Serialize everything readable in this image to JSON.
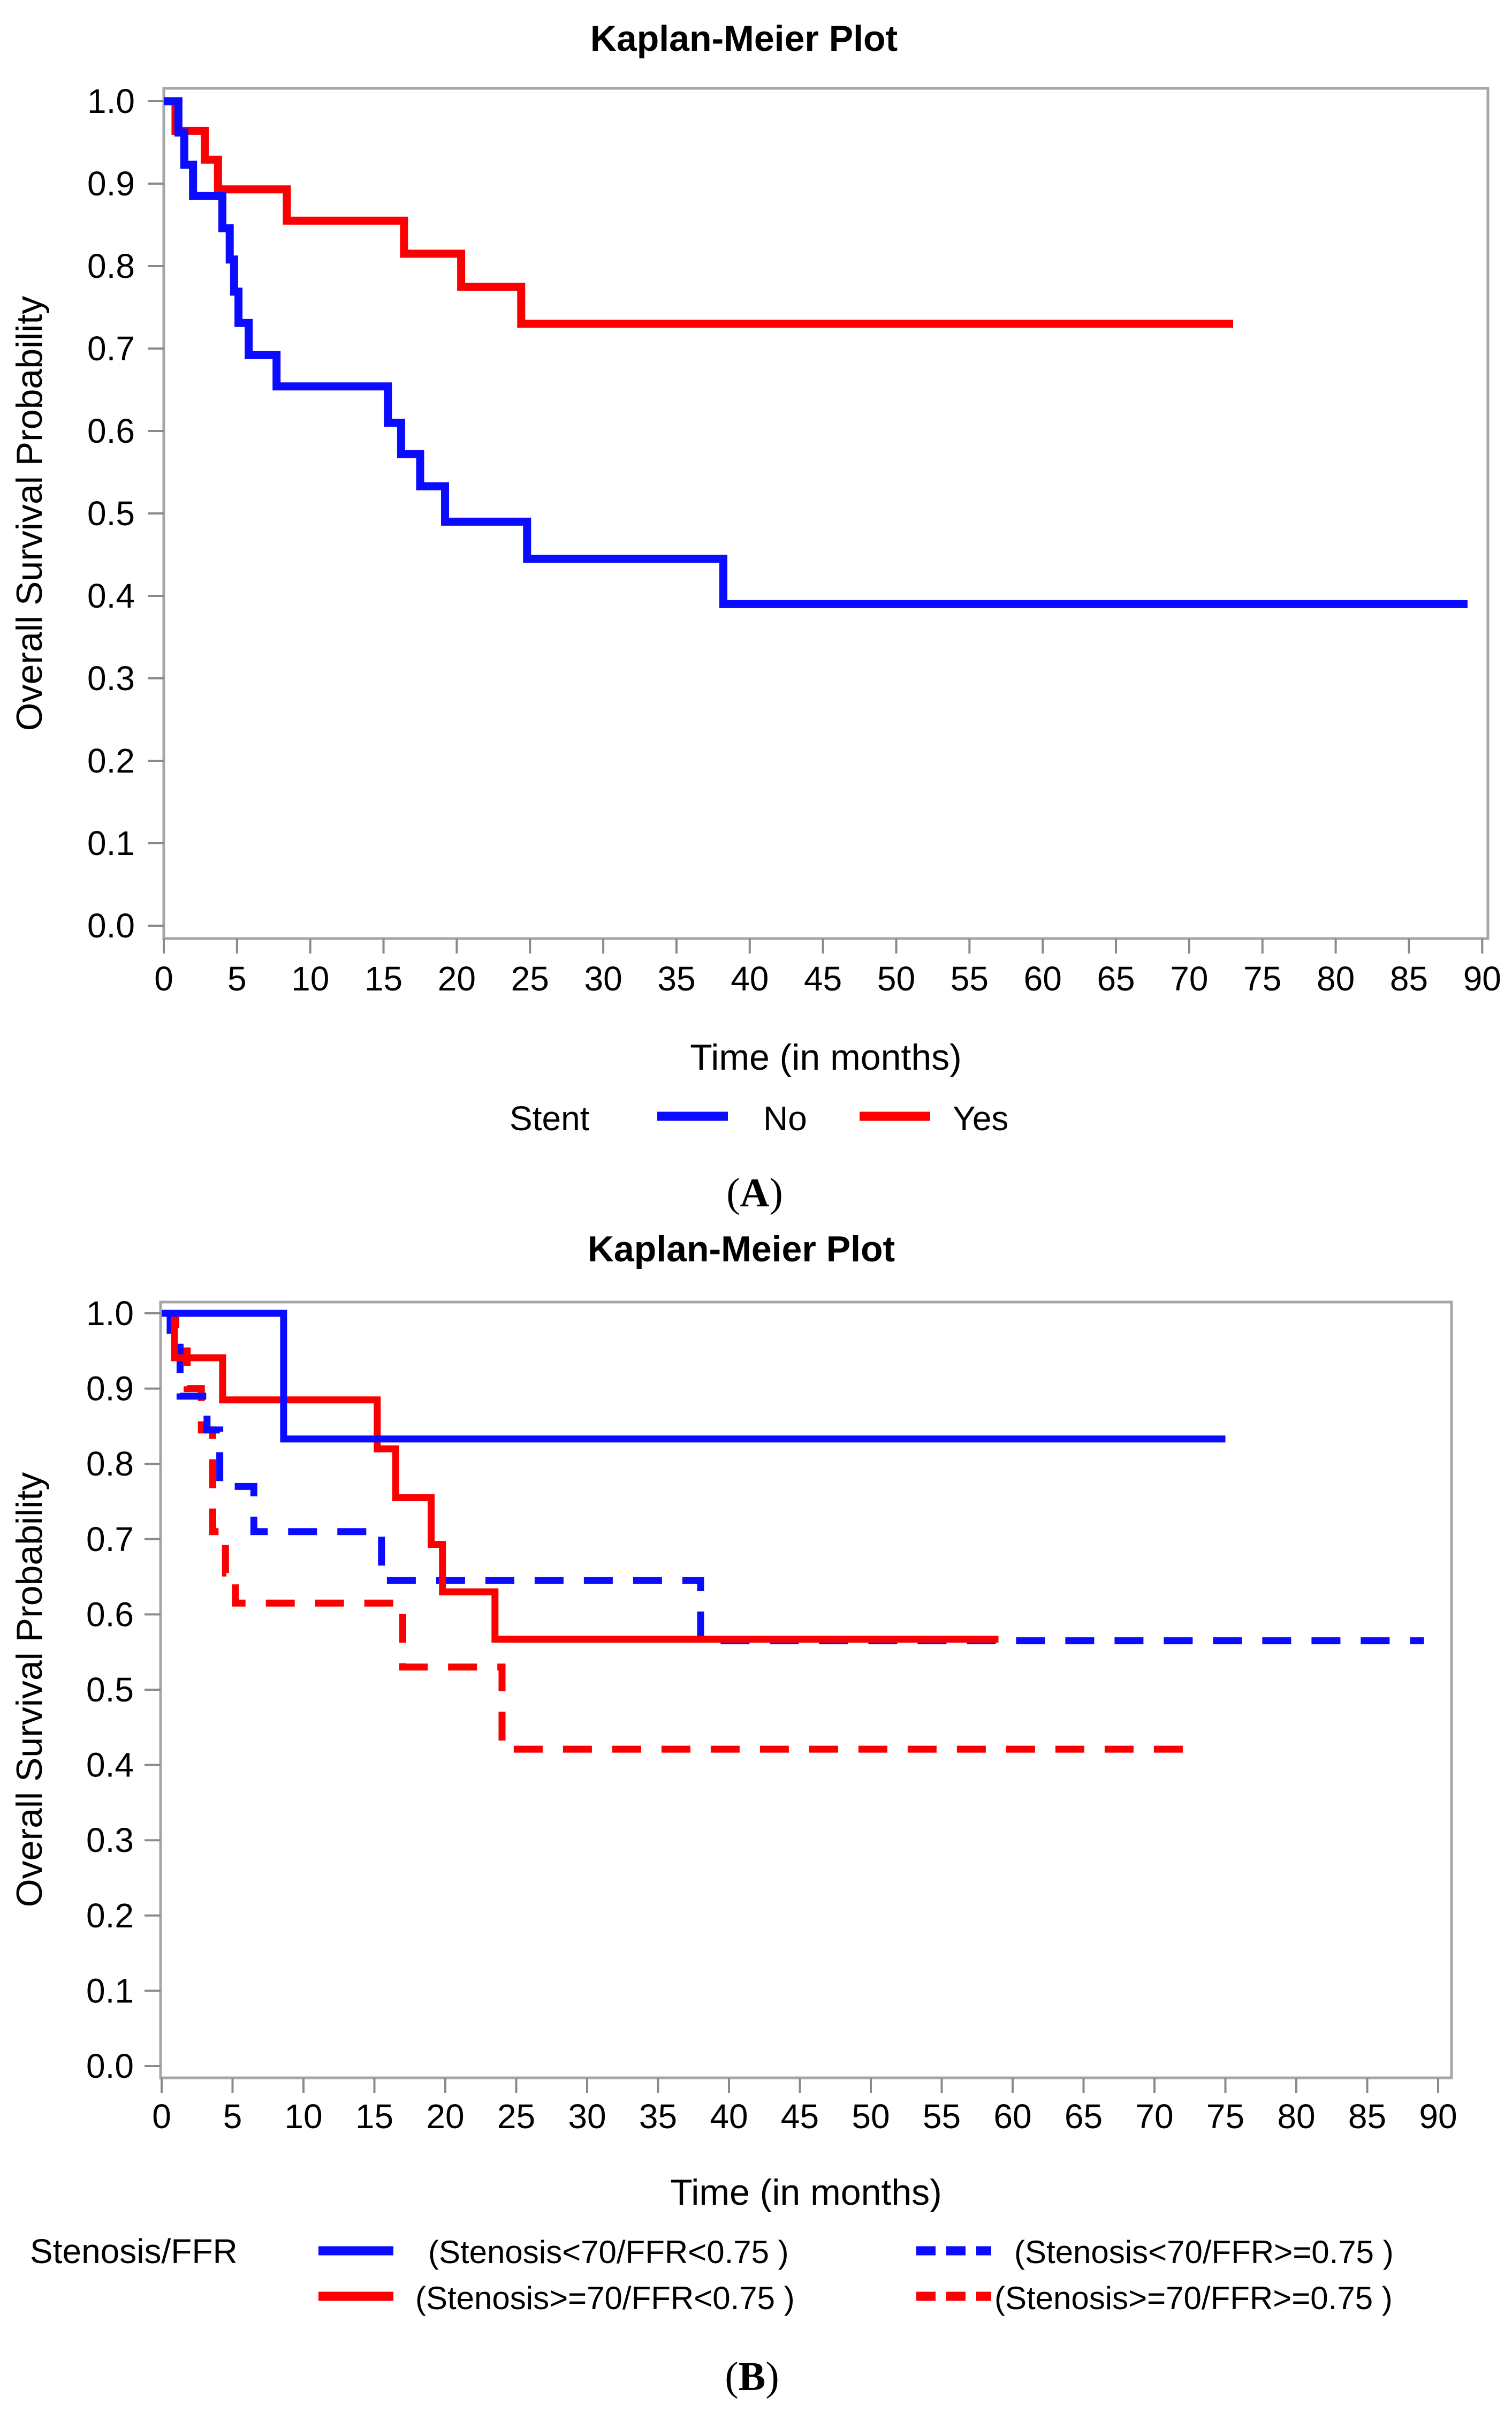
{
  "figure": {
    "background": "#ffffff",
    "panel_count": 2
  },
  "colors": {
    "blue": "#0b0bff",
    "red": "#fb0000",
    "frame_gray": "#a6a6a6",
    "text_black": "#000000"
  },
  "chart_data": [
    {
      "type": "line",
      "subtype": "kaplan-meier-step",
      "panel": "A",
      "title": "Kaplan-Meier Plot",
      "xlabel": "Time (in months)",
      "ylabel": "Overall Survival Probability",
      "caption": {
        "open": "(",
        "letter": "A",
        "close": ")"
      },
      "xlim": [
        0,
        90
      ],
      "ylim": [
        0.0,
        1.0
      ],
      "x_ticks": [
        0,
        5,
        10,
        15,
        20,
        25,
        30,
        35,
        40,
        45,
        50,
        55,
        60,
        65,
        70,
        75,
        80,
        85,
        90
      ],
      "y_ticks": [
        0.0,
        0.1,
        0.2,
        0.3,
        0.4,
        0.5,
        0.6,
        0.7,
        0.8,
        0.9,
        1.0
      ],
      "grid": false,
      "legend": {
        "title": "Stent",
        "position": "bottom",
        "entries": [
          {
            "label": "No",
            "color": "#0b0bff",
            "dash": "solid"
          },
          {
            "label": "Yes",
            "color": "#fb0000",
            "dash": "solid"
          }
        ]
      },
      "series": [
        {
          "name": "No",
          "color": "#0b0bff",
          "dash": "solid",
          "points_month_prob": [
            [
              0,
              1.0
            ],
            [
              1.0,
              0.962
            ],
            [
              1.4,
              0.923
            ],
            [
              2.0,
              0.885
            ],
            [
              4.0,
              0.846
            ],
            [
              4.5,
              0.808
            ],
            [
              4.8,
              0.769
            ],
            [
              5.1,
              0.731
            ],
            [
              5.8,
              0.692
            ],
            [
              7.7,
              0.654
            ],
            [
              15.3,
              0.61
            ],
            [
              16.2,
              0.572
            ],
            [
              17.5,
              0.533
            ],
            [
              19.2,
              0.49
            ],
            [
              24.8,
              0.445
            ],
            [
              38.2,
              0.39
            ],
            [
              89,
              0.39
            ]
          ]
        },
        {
          "name": "Yes",
          "color": "#fb0000",
          "dash": "solid",
          "points_month_prob": [
            [
              0,
              1.0
            ],
            [
              0.8,
              0.964
            ],
            [
              2.8,
              0.929
            ],
            [
              3.7,
              0.893
            ],
            [
              8.4,
              0.855
            ],
            [
              16.4,
              0.815
            ],
            [
              20.3,
              0.775
            ],
            [
              24.4,
              0.73
            ],
            [
              73,
              0.73
            ]
          ]
        }
      ]
    },
    {
      "type": "line",
      "subtype": "kaplan-meier-step",
      "panel": "B",
      "title": "Kaplan-Meier Plot",
      "xlabel": "Time (in months)",
      "ylabel": "Overall Survival Probability",
      "caption": {
        "open": "(",
        "letter": "B",
        "close": ")"
      },
      "xlim": [
        0,
        90
      ],
      "ylim": [
        0.0,
        1.0
      ],
      "x_ticks": [
        0,
        5,
        10,
        15,
        20,
        25,
        30,
        35,
        40,
        45,
        50,
        55,
        60,
        65,
        70,
        75,
        80,
        85,
        90
      ],
      "y_ticks": [
        0.0,
        0.1,
        0.2,
        0.3,
        0.4,
        0.5,
        0.6,
        0.7,
        0.8,
        0.9,
        1.0
      ],
      "grid": false,
      "legend": {
        "title": "Stenosis/FFR",
        "position": "bottom",
        "entries": [
          {
            "label": "(Stenosis<70/FFR<0.75 )",
            "color": "#0b0bff",
            "dash": "solid"
          },
          {
            "label": "(Stenosis<70/FFR>=0.75 )",
            "color": "#0b0bff",
            "dash": "dashed"
          },
          {
            "label": "(Stenosis>=70/FFR<0.75 )",
            "color": "#fb0000",
            "dash": "solid"
          },
          {
            "label": "(Stenosis>=70/FFR>=0.75 )",
            "color": "#fb0000",
            "dash": "dashed"
          }
        ]
      },
      "series": [
        {
          "name": "(Stenosis<70/FFR<0.75 )",
          "color": "#0b0bff",
          "dash": "solid",
          "points_month_prob": [
            [
              0,
              1.0
            ],
            [
              8.6,
              0.833
            ],
            [
              75,
              0.833
            ]
          ]
        },
        {
          "name": "(Stenosis>=70/FFR<0.75 )",
          "color": "#fb0000",
          "dash": "solid",
          "points_month_prob": [
            [
              0,
              1.0
            ],
            [
              0.9,
              0.941
            ],
            [
              4.3,
              0.885
            ],
            [
              15.2,
              0.82
            ],
            [
              16.5,
              0.755
            ],
            [
              19.0,
              0.693
            ],
            [
              19.8,
              0.63
            ],
            [
              23.5,
              0.567
            ],
            [
              59,
              0.567
            ]
          ]
        },
        {
          "name": "(Stenosis<70/FFR>=0.75 )",
          "color": "#0b0bff",
          "dash": "dashed",
          "points_month_prob": [
            [
              0,
              1.0
            ],
            [
              0.6,
              0.955
            ],
            [
              1.3,
              0.89
            ],
            [
              3.2,
              0.845
            ],
            [
              4.1,
              0.77
            ],
            [
              6.5,
              0.71
            ],
            [
              15.5,
              0.645
            ],
            [
              38,
              0.565
            ],
            [
              89,
              0.565
            ]
          ]
        },
        {
          "name": "(Stenosis>=70/FFR>=0.75 )",
          "color": "#fb0000",
          "dash": "dashed",
          "points_month_prob": [
            [
              0,
              1.0
            ],
            [
              1.0,
              0.95
            ],
            [
              1.8,
              0.9
            ],
            [
              2.8,
              0.845
            ],
            [
              3.6,
              0.71
            ],
            [
              4.5,
              0.655
            ],
            [
              5.2,
              0.615
            ],
            [
              17,
              0.53
            ],
            [
              24,
              0.421
            ],
            [
              72,
              0.421
            ]
          ]
        }
      ]
    }
  ]
}
